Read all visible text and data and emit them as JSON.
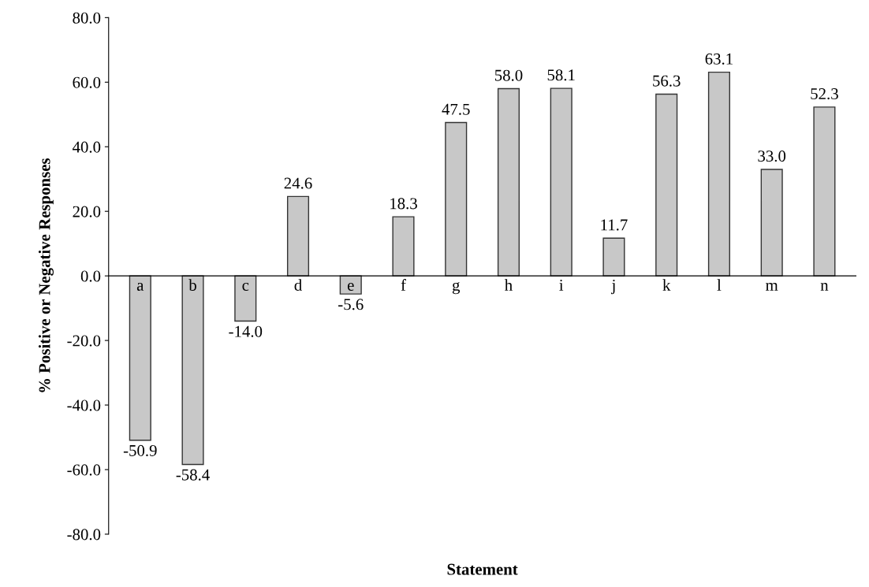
{
  "chart_data": {
    "type": "bar",
    "xlabel": "Statement",
    "ylabel": "% Positive or Negative Responses",
    "categories": [
      "a",
      "b",
      "c",
      "d",
      "e",
      "f",
      "g",
      "h",
      "i",
      "j",
      "k",
      "l",
      "m",
      "n"
    ],
    "values": [
      -50.9,
      -58.4,
      -14.0,
      24.6,
      -5.6,
      18.3,
      47.5,
      58.0,
      58.1,
      11.7,
      56.3,
      63.1,
      33.0,
      52.3
    ],
    "value_labels": [
      "-50.9",
      "-58.4",
      "-14.0",
      "24.6",
      "-5.6",
      "18.3",
      "47.5",
      "58.0",
      "58.1",
      "11.7",
      "56.3",
      "63.1",
      "33.0",
      "52.3"
    ],
    "color": "#c8c8c8",
    "ylim": [
      -80,
      80
    ],
    "yticks": [
      {
        "value": -80,
        "label": "-80.0"
      },
      {
        "value": -60,
        "label": "-60.0"
      },
      {
        "value": -40,
        "label": "-40.0"
      },
      {
        "value": -20,
        "label": "-20.0"
      },
      {
        "value": 0,
        "label": "0.0"
      },
      {
        "value": 20,
        "label": "20.0"
      },
      {
        "value": 40,
        "label": "40.0"
      },
      {
        "value": 60,
        "label": "60.0"
      },
      {
        "value": 80,
        "label": "80.0"
      }
    ],
    "grid": false,
    "legend": false
  }
}
